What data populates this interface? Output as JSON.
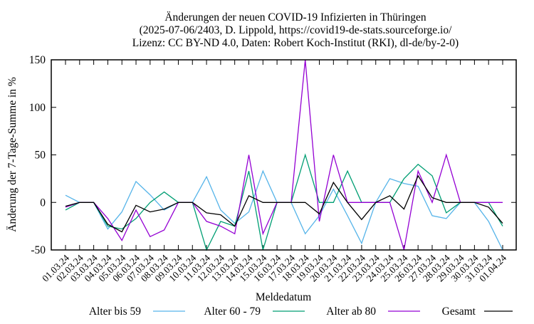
{
  "chart_data": {
    "type": "line",
    "title": [
      "Änderungen der neuen COVID-19 Infizierten in Thüringen",
      "(2025-07-06/2403, D. Lippold, https://covid19-de-stats.sourceforge.io/",
      "Lizenz: CC BY-ND 4.0, Daten: Robert Koch-Institut (RKI), dl-de/by-2-0)"
    ],
    "xlabel": "Meldedatum",
    "ylabel": "Änderung der 7-Tage-Summe in %",
    "ylim": [
      -50,
      150
    ],
    "yticks": [
      -50,
      0,
      50,
      100,
      150
    ],
    "grid": false,
    "legend_position": "bottom",
    "categories": [
      "01.03.24",
      "02.03.24",
      "03.03.24",
      "04.03.24",
      "05.03.24",
      "06.03.24",
      "07.03.24",
      "08.03.24",
      "09.03.24",
      "10.03.24",
      "11.03.24",
      "12.03.24",
      "13.03.24",
      "14.03.24",
      "15.03.24",
      "16.03.24",
      "17.03.24",
      "18.03.24",
      "19.03.24",
      "20.03.24",
      "21.03.24",
      "22.03.24",
      "23.03.24",
      "24.03.24",
      "25.03.24",
      "26.03.24",
      "27.03.24",
      "28.03.24",
      "29.03.24",
      "30.03.24",
      "31.03.24",
      "01.04.24"
    ],
    "series": [
      {
        "name": "Alter bis 59",
        "color": "#56b4e9",
        "values": [
          7.5,
          0,
          0,
          -28,
          -10,
          22,
          8,
          -8,
          0,
          0,
          27,
          -8,
          -22,
          -10,
          33,
          0,
          0,
          -33,
          -14,
          14,
          -14,
          -43,
          0,
          25,
          20,
          17,
          -14,
          -17,
          0,
          0,
          -20,
          -50
        ]
      },
      {
        "name": "Alter 60 - 79",
        "color": "#009e73",
        "values": [
          -8,
          0,
          0,
          -25,
          -28,
          -17,
          0,
          11,
          0,
          0,
          -50,
          -20,
          -25,
          33,
          -50,
          0,
          0,
          50,
          0,
          0,
          33,
          0,
          0,
          0,
          25,
          40,
          28,
          -11,
          0,
          0,
          0,
          -25
        ]
      },
      {
        "name": "Alter ab 80",
        "color": "#9400d3",
        "values": [
          -5,
          0,
          0,
          -17,
          -40,
          -8,
          -36,
          -29,
          0,
          0,
          -20,
          -25,
          -33,
          50,
          -33,
          0,
          0,
          150,
          -20,
          50,
          0,
          0,
          0,
          0,
          -50,
          33,
          0,
          50,
          0,
          0,
          0,
          0
        ]
      },
      {
        "name": "Gesamt",
        "color": "#000000",
        "values": [
          -4,
          0,
          0,
          -23,
          -31,
          -3,
          -10,
          -7,
          0,
          0,
          -11,
          -13,
          -25,
          7,
          0,
          0,
          0,
          0,
          -12,
          21,
          0,
          -18,
          0,
          7,
          -7,
          28,
          5,
          0,
          0,
          0,
          -5,
          -22
        ]
      }
    ]
  }
}
